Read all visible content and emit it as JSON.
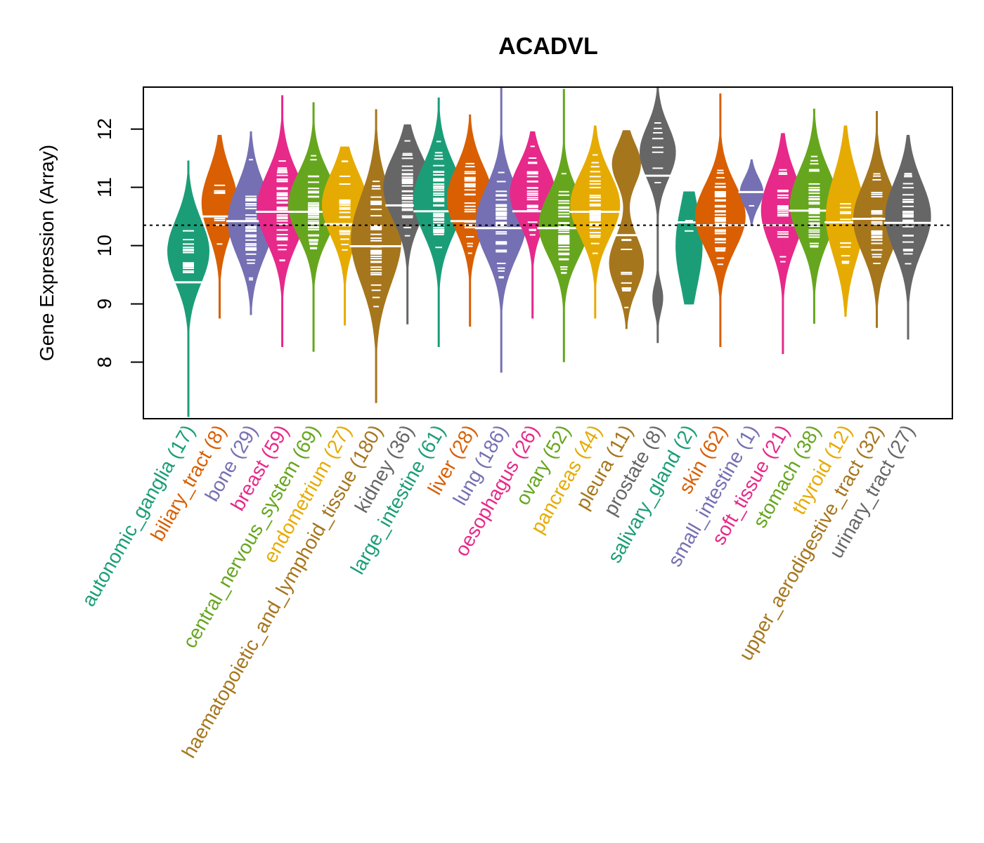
{
  "chart_data": {
    "type": "violin",
    "title": "ACADVL",
    "xlabel": "",
    "ylabel": "Gene Expression (Array)",
    "ylim": [
      7.03,
      12.72
    ],
    "yticks": [
      8,
      9,
      10,
      11,
      12
    ],
    "reference_line": {
      "value": 10.35,
      "style": "dotted",
      "color": "#000000"
    },
    "grid": false,
    "legend": "none",
    "categories": [
      {
        "name": "autonomic_ganglia",
        "n": 17,
        "color": "#1B9E77",
        "min": 7.06,
        "max": 11.46,
        "median": 9.37,
        "mode": 9.9,
        "spread": 0.55
      },
      {
        "name": "biliary_tract",
        "n": 8,
        "color": "#D95F02",
        "min": 8.75,
        "max": 11.9,
        "median": 10.5,
        "mode": 10.73,
        "spread": 0.55
      },
      {
        "name": "bone",
        "n": 29,
        "color": "#7570B3",
        "min": 8.81,
        "max": 11.96,
        "median": 10.42,
        "mode": 10.42,
        "spread": 0.6
      },
      {
        "name": "breast",
        "n": 59,
        "color": "#E7298A",
        "min": 8.26,
        "max": 12.58,
        "median": 10.58,
        "mode": 10.65,
        "spread": 0.6
      },
      {
        "name": "central_nervous_system",
        "n": 69,
        "color": "#66A61E",
        "min": 8.18,
        "max": 12.46,
        "median": 10.58,
        "mode": 10.7,
        "spread": 0.55
      },
      {
        "name": "endometrium",
        "n": 27,
        "color": "#E6AB02",
        "min": 8.63,
        "max": 11.7,
        "median": 10.37,
        "mode": 10.7,
        "spread": 0.55
      },
      {
        "name": "haematopoietic_and_lymphoid_tissue",
        "n": 180,
        "color": "#A6761D",
        "min": 7.3,
        "max": 12.34,
        "median": 9.99,
        "mode": 10.1,
        "spread": 0.75
      },
      {
        "name": "kidney",
        "n": 36,
        "color": "#666666",
        "min": 8.65,
        "max": 12.08,
        "median": 10.69,
        "mode": 11.0,
        "spread": 0.55
      },
      {
        "name": "large_intestine",
        "n": 61,
        "color": "#1B9E77",
        "min": 8.26,
        "max": 12.54,
        "median": 10.59,
        "mode": 10.8,
        "spread": 0.6
      },
      {
        "name": "liver",
        "n": 28,
        "color": "#D95F02",
        "min": 8.61,
        "max": 12.25,
        "median": 10.42,
        "mode": 10.8,
        "spread": 0.55
      },
      {
        "name": "lung",
        "n": 186,
        "color": "#7570B3",
        "min": 7.82,
        "max": 12.73,
        "median": 10.3,
        "mode": 10.4,
        "spread": 0.6
      },
      {
        "name": "oesophagus",
        "n": 26,
        "color": "#E7298A",
        "min": 8.75,
        "max": 11.96,
        "median": 10.59,
        "mode": 10.9,
        "spread": 0.5
      },
      {
        "name": "ovary",
        "n": 52,
        "color": "#66A61E",
        "min": 8.0,
        "max": 12.69,
        "median": 10.3,
        "mode": 10.35,
        "spread": 0.55
      },
      {
        "name": "pancreas",
        "n": 44,
        "color": "#E6AB02",
        "min": 8.75,
        "max": 12.06,
        "median": 10.58,
        "mode": 10.7,
        "spread": 0.55
      },
      {
        "name": "pleura",
        "n": 11,
        "color": "#A6761D",
        "min": 8.57,
        "max": 11.98,
        "median": 10.18,
        "mode": 9.7,
        "spread": 0.5
      },
      {
        "name": "prostate",
        "n": 8,
        "color": "#666666",
        "min": 8.33,
        "max": 12.73,
        "median": 11.2,
        "mode": 11.6,
        "spread": 0.45
      },
      {
        "name": "salivary_gland",
        "n": 2,
        "color": "#1B9E77",
        "min": 8.99,
        "max": 10.93,
        "median": 10.4,
        "mode": 10.0,
        "spread": 0.7
      },
      {
        "name": "skin",
        "n": 62,
        "color": "#D95F02",
        "min": 8.26,
        "max": 12.61,
        "median": 10.35,
        "mode": 10.5,
        "spread": 0.55
      },
      {
        "name": "small_intestine",
        "n": 1,
        "color": "#7570B3",
        "min": 10.34,
        "max": 11.48,
        "median": 10.92,
        "mode": 10.92,
        "spread": 0.25
      },
      {
        "name": "soft_tissue",
        "n": 21,
        "color": "#E7298A",
        "min": 8.14,
        "max": 11.93,
        "median": 10.35,
        "mode": 10.6,
        "spread": 0.6
      },
      {
        "name": "stomach",
        "n": 38,
        "color": "#66A61E",
        "min": 8.66,
        "max": 12.35,
        "median": 10.6,
        "mode": 10.7,
        "spread": 0.6
      },
      {
        "name": "thyroid",
        "n": 12,
        "color": "#E6AB02",
        "min": 8.78,
        "max": 12.06,
        "median": 10.4,
        "mode": 10.5,
        "spread": 0.7
      },
      {
        "name": "upper_aerodigestive_tract",
        "n": 32,
        "color": "#A6761D",
        "min": 8.59,
        "max": 12.31,
        "median": 10.46,
        "mode": 10.45,
        "spread": 0.6
      },
      {
        "name": "urinary_tract",
        "n": 27,
        "color": "#666666",
        "min": 8.39,
        "max": 11.9,
        "median": 10.39,
        "mode": 10.5,
        "spread": 0.6
      }
    ]
  }
}
